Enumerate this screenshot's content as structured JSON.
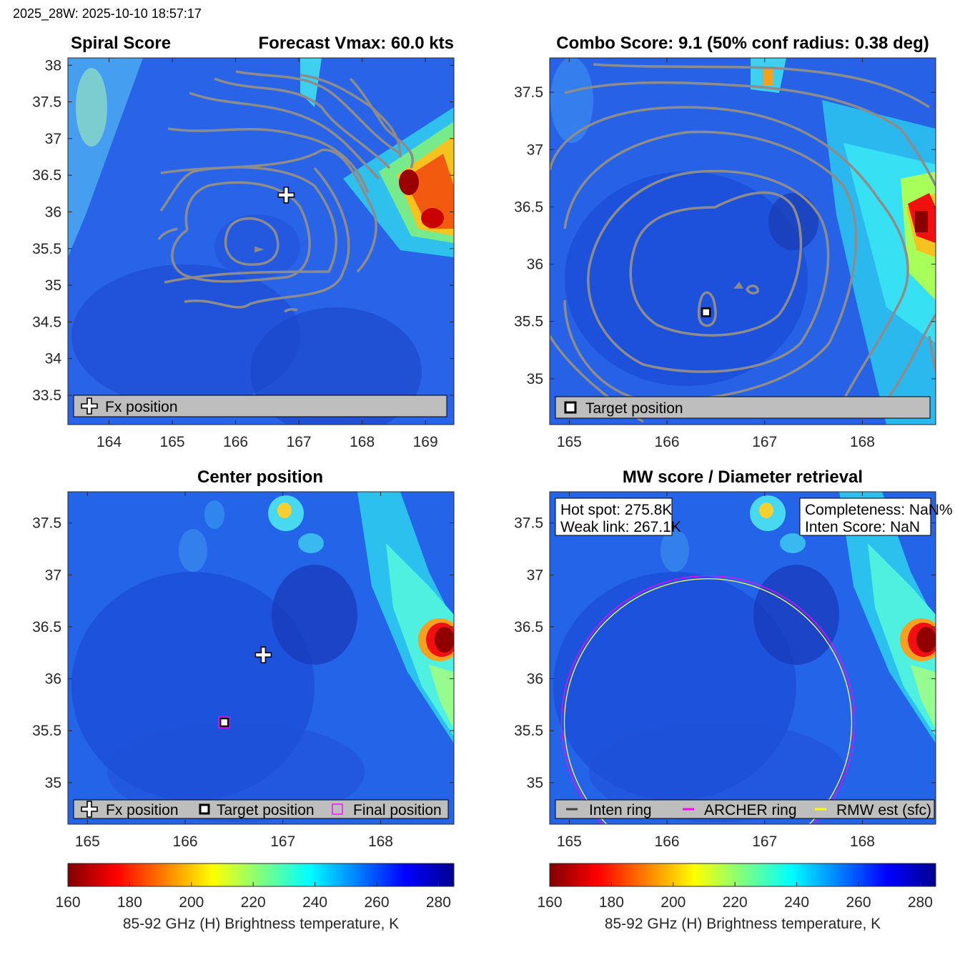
{
  "header": {
    "stamp": "2025_28W: 2025-10-10 18:57:17"
  },
  "colors": {
    "contour": "#8c8c8c",
    "axes_bg_low": "#1f5bd9",
    "legend_bg": "#bebebe",
    "archer_ring": "#ff00ff",
    "rmw_ring": "#ffff00",
    "inten_ring": "#404040"
  },
  "chart_data": [
    {
      "id": "spiral",
      "type": "heatmap",
      "title_left": "Spiral Score",
      "title_right": "Forecast Vmax: 60.0 kts",
      "xlim": [
        163.35,
        169.45
      ],
      "ylim": [
        33.1,
        38.1
      ],
      "xticks": [
        "164",
        "165",
        "166",
        "167",
        "168",
        "169"
      ],
      "yticks": [
        "33.5",
        "34",
        "34.5",
        "35",
        "35.5",
        "36",
        "36.5",
        "37",
        "37.5",
        "38"
      ],
      "fx_position": [
        166.8,
        36.23
      ],
      "legend": [
        "Fx position"
      ]
    },
    {
      "id": "combo",
      "type": "heatmap",
      "title": "Combo Score: 9.1  (50% conf radius: 0.38 deg)",
      "xlim": [
        164.8,
        168.75
      ],
      "ylim": [
        34.6,
        37.8
      ],
      "xticks": [
        "165",
        "166",
        "167",
        "168"
      ],
      "yticks": [
        "35",
        "35.5",
        "36",
        "36.5",
        "37",
        "37.5"
      ],
      "target_position": [
        166.4,
        35.58
      ],
      "legend": [
        "Target position"
      ]
    },
    {
      "id": "center",
      "type": "heatmap",
      "title": "Center position",
      "xlim": [
        164.8,
        168.75
      ],
      "ylim": [
        34.6,
        37.8
      ],
      "xticks": [
        "165",
        "166",
        "167",
        "168"
      ],
      "yticks": [
        "35",
        "35.5",
        "36",
        "36.5",
        "37",
        "37.5"
      ],
      "fx_position": [
        166.8,
        36.23
      ],
      "target_position": [
        166.4,
        35.58
      ],
      "final_position": [
        166.4,
        35.58
      ],
      "legend": [
        "Fx position",
        "Target position",
        "Final position"
      ]
    },
    {
      "id": "mwscore",
      "type": "heatmap",
      "title": "MW score / Diameter retrieval",
      "xlim": [
        164.8,
        168.75
      ],
      "ylim": [
        34.6,
        37.8
      ],
      "xticks": [
        "165",
        "166",
        "167",
        "168"
      ],
      "yticks": [
        "35",
        "35.5",
        "36",
        "36.5",
        "37",
        "37.5"
      ],
      "info_left": [
        "Hot spot: 275.8K",
        "Weak link: 267.1K"
      ],
      "info_right": [
        "Completeness: NaN%",
        "Inten Score: NaN"
      ],
      "archer_ring": {
        "center": [
          166.42,
          35.58
        ],
        "radius_deg": 1.5
      },
      "rmw_ring": {
        "center": [
          166.42,
          35.58
        ],
        "radius_deg": 1.47
      },
      "legend": [
        "Inten ring",
        "ARCHER ring",
        "RMW est (sfc)"
      ]
    }
  ],
  "colorbar": {
    "range": [
      160,
      285
    ],
    "ticks": [
      "160",
      "180",
      "200",
      "220",
      "240",
      "260",
      "280"
    ],
    "label": "85-92 GHz (H) Brightness temperature, K"
  }
}
